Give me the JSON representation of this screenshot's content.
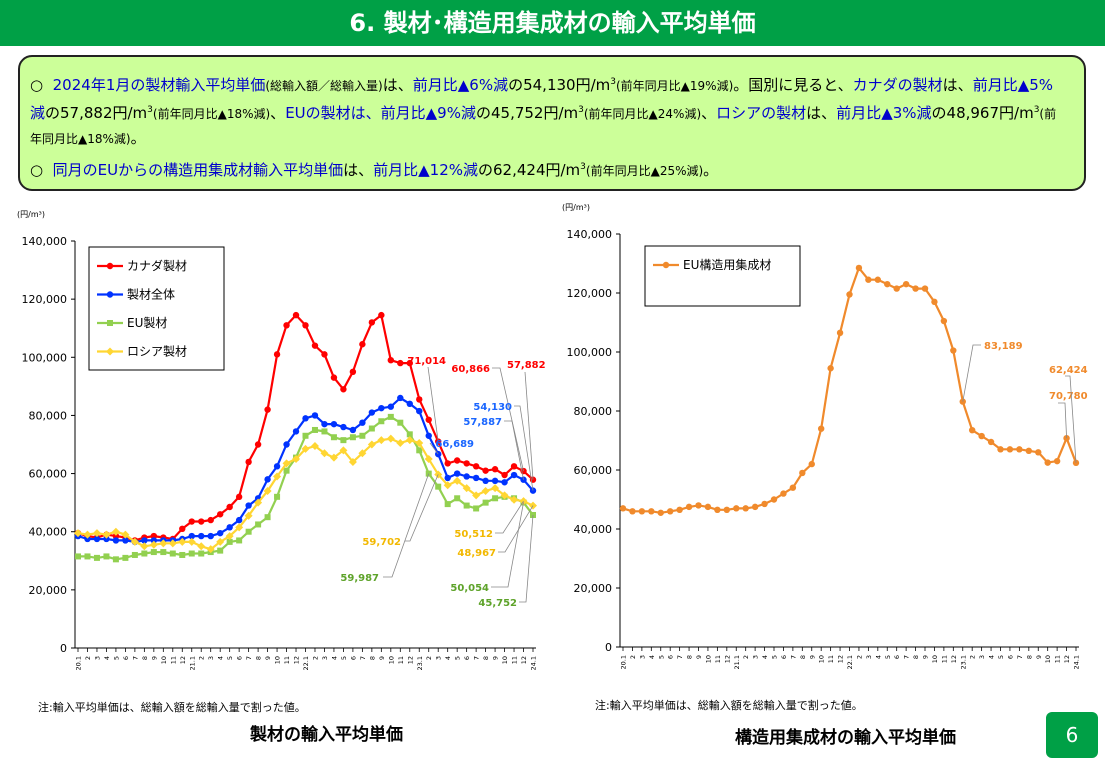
{
  "header": {
    "title": "6. 製材･構造用集成材の輸入平均単価"
  },
  "summary": {
    "bullet": "○",
    "para1": [
      {
        "t": "2024年1月の製材輸入平均単価",
        "c": "blue"
      },
      {
        "t": "(総輸入額／総輸入量)",
        "c": "small"
      },
      {
        "t": "は、",
        "c": ""
      },
      {
        "t": "前月比▲6%減",
        "c": "blue"
      },
      {
        "t": "の54,130円/m",
        "c": ""
      },
      {
        "t": "3",
        "c": "sup"
      },
      {
        "t": "(前年同月比▲19%減)",
        "c": "small"
      },
      {
        "t": "。国別に見ると、",
        "c": ""
      },
      {
        "t": "カナダの製材",
        "c": "blue"
      },
      {
        "t": "は、",
        "c": ""
      },
      {
        "t": "前月比▲5%減",
        "c": "blue"
      },
      {
        "t": "の57,882円/m",
        "c": ""
      },
      {
        "t": "3",
        "c": "sup"
      },
      {
        "t": "(前年同月比▲18%減)",
        "c": "small"
      },
      {
        "t": "、",
        "c": ""
      },
      {
        "t": "EUの製材は、前月比▲9%減",
        "c": "blue"
      },
      {
        "t": "の45,752円/m",
        "c": ""
      },
      {
        "t": "3",
        "c": "sup"
      },
      {
        "t": "(前年同月比▲24%減)",
        "c": "small"
      },
      {
        "t": "、",
        "c": ""
      },
      {
        "t": "ロシアの製材",
        "c": "blue"
      },
      {
        "t": "は、",
        "c": ""
      },
      {
        "t": "前月比▲3%減",
        "c": "blue"
      },
      {
        "t": "の48,967円/m",
        "c": ""
      },
      {
        "t": "3",
        "c": "sup"
      },
      {
        "t": "(前年同月比▲18%減)",
        "c": "small"
      },
      {
        "t": "。",
        "c": ""
      }
    ],
    "para2": [
      {
        "t": "同月のEUからの構造用集成材輸入平均単価",
        "c": "blue"
      },
      {
        "t": "は、",
        "c": ""
      },
      {
        "t": "前月比▲12%減",
        "c": "blue"
      },
      {
        "t": "の62,424円/m",
        "c": ""
      },
      {
        "t": "3",
        "c": "sup"
      },
      {
        "t": "(前年同月比▲25%減)",
        "c": "small"
      },
      {
        "t": "。",
        "c": ""
      }
    ]
  },
  "notes": {
    "left": "注:輸入平均単価は、総輸入額を総輸入量で割った値。",
    "right": "注:輸入平均単価は、総輸入額を総輸入量で割った値。"
  },
  "captions": {
    "left": "製材の輸入平均単価",
    "right": "構造用集成材の輸入平均単価"
  },
  "page_number": "6",
  "colors": {
    "canada": "#ff0000",
    "total": "#0033ff",
    "eu": "#92d050",
    "russia": "#ffd633",
    "glulam": "#f08a2c",
    "header": "#00a046",
    "panel": "#ccff99"
  },
  "chart_data": [
    {
      "type": "line",
      "title": "製材の輸入平均単価",
      "ylabel": "(円/m³)",
      "ylim": [
        0,
        140000
      ],
      "yticks": [
        "0",
        "20,000",
        "40,000",
        "60,000",
        "80,000",
        "100,000",
        "120,000",
        "140,000"
      ],
      "categories": [
        "20.1",
        "2",
        "3",
        "4",
        "5",
        "6",
        "7",
        "8",
        "9",
        "10",
        "11",
        "12",
        "21.1",
        "2",
        "3",
        "4",
        "5",
        "6",
        "7",
        "8",
        "9",
        "10",
        "11",
        "12",
        "22.1",
        "2",
        "3",
        "4",
        "5",
        "6",
        "7",
        "8",
        "9",
        "10",
        "11",
        "12",
        "23.1",
        "2",
        "3",
        "4",
        "5",
        "6",
        "7",
        "8",
        "9",
        "10",
        "11",
        "12",
        "24.1"
      ],
      "legend": [
        "カナダ製材",
        "製材全体",
        "EU製材",
        "ロシア製材"
      ],
      "legend_position": "top-left",
      "series": [
        {
          "name": "カナダ製材",
          "color": "#ff0000",
          "marker": "circle",
          "values": [
            39500,
            38500,
            38000,
            39000,
            38500,
            38000,
            37000,
            38000,
            38500,
            38000,
            37500,
            41000,
            43500,
            43500,
            44000,
            46000,
            48500,
            52000,
            64000,
            70000,
            82000,
            101000,
            111000,
            114500,
            111000,
            104000,
            101000,
            93000,
            89000,
            95000,
            104500,
            112000,
            114500,
            99000,
            98000,
            98000,
            85500,
            78500,
            71014,
            63500,
            64500,
            63500,
            62500,
            61000,
            61500,
            59500,
            62500,
            60866,
            57882
          ]
        },
        {
          "name": "製材全体",
          "color": "#0033ff",
          "marker": "circle",
          "values": [
            38500,
            37500,
            37500,
            37500,
            37000,
            37000,
            36500,
            37000,
            37000,
            37000,
            37000,
            37500,
            38500,
            38500,
            38500,
            39500,
            41500,
            44000,
            49000,
            51500,
            58000,
            62500,
            70000,
            74500,
            79000,
            80000,
            77000,
            77000,
            76000,
            75000,
            77500,
            81000,
            82500,
            83000,
            86000,
            84000,
            81500,
            73000,
            66689,
            58500,
            60000,
            59000,
            58500,
            57500,
            57500,
            57000,
            59500,
            57887,
            54130
          ]
        },
        {
          "name": "EU製材",
          "color": "#92d050",
          "marker": "square",
          "values": [
            31500,
            31500,
            31000,
            31500,
            30500,
            31000,
            32000,
            32500,
            33000,
            33000,
            32500,
            32000,
            32500,
            32500,
            33000,
            33500,
            36500,
            37000,
            40000,
            42500,
            45000,
            52000,
            61000,
            65500,
            73000,
            75000,
            74500,
            72500,
            71500,
            72500,
            73000,
            75500,
            78000,
            79500,
            77500,
            73500,
            68000,
            59987,
            55500,
            49500,
            51500,
            49000,
            48000,
            50000,
            51500,
            52000,
            51500,
            50054,
            45752
          ]
        },
        {
          "name": "ロシア製材",
          "color": "#ffd633",
          "marker": "diamond",
          "values": [
            39500,
            39000,
            39500,
            39000,
            40000,
            39000,
            36500,
            35000,
            35500,
            36000,
            36000,
            36500,
            36500,
            35000,
            34000,
            36500,
            38500,
            41500,
            45500,
            50000,
            54000,
            59000,
            63500,
            65000,
            68500,
            69500,
            67000,
            65500,
            68000,
            64000,
            67000,
            70000,
            71500,
            72000,
            70500,
            71500,
            70500,
            65000,
            59702,
            56000,
            57500,
            55000,
            52500,
            54000,
            55000,
            52500,
            51000,
            50512,
            48967
          ]
        }
      ],
      "annotations": [
        {
          "label": "71,014",
          "series": "カナダ製材",
          "index": 38
        },
        {
          "label": "60,866",
          "series": "カナダ製材",
          "index": 47
        },
        {
          "label": "57,882",
          "series": "カナダ製材",
          "index": 48
        },
        {
          "label": "54,130",
          "series": "製材全体",
          "index": 48
        },
        {
          "label": "57,887",
          "series": "製材全体",
          "index": 47
        },
        {
          "label": "66,689",
          "series": "製材全体",
          "index": 38
        },
        {
          "label": "59,702",
          "series": "ロシア製材",
          "index": 38
        },
        {
          "label": "50,512",
          "series": "ロシア製材",
          "index": 47
        },
        {
          "label": "48,967",
          "series": "ロシア製材",
          "index": 48
        },
        {
          "label": "59,987",
          "series": "EU製材",
          "index": 37
        },
        {
          "label": "50,054",
          "series": "EU製材",
          "index": 47
        },
        {
          "label": "45,752",
          "series": "EU製材",
          "index": 48
        }
      ]
    },
    {
      "type": "line",
      "title": "構造用集成材の輸入平均単価",
      "ylabel": "(円/m³)",
      "ylim": [
        0,
        140000
      ],
      "yticks": [
        "0",
        "20,000",
        "40,000",
        "60,000",
        "80,000",
        "100,000",
        "120,000",
        "140,000"
      ],
      "categories": [
        "20.1",
        "2",
        "3",
        "4",
        "5",
        "6",
        "7",
        "8",
        "9",
        "10",
        "11",
        "12",
        "21.1",
        "2",
        "3",
        "4",
        "5",
        "6",
        "7",
        "8",
        "9",
        "10",
        "11",
        "12",
        "22.1",
        "2",
        "3",
        "4",
        "5",
        "6",
        "7",
        "8",
        "9",
        "10",
        "11",
        "12",
        "23.1",
        "2",
        "3",
        "4",
        "5",
        "6",
        "7",
        "8",
        "9",
        "10",
        "11",
        "12",
        "24.1"
      ],
      "legend": [
        "EU構造用集成材"
      ],
      "legend_position": "top-left",
      "series": [
        {
          "name": "EU構造用集成材",
          "color": "#f08a2c",
          "marker": "circle",
          "values": [
            47000,
            46000,
            46000,
            46000,
            45500,
            46000,
            46500,
            47500,
            48000,
            47500,
            46500,
            46500,
            47000,
            47000,
            47500,
            48500,
            50000,
            52000,
            54000,
            59000,
            62000,
            74000,
            94500,
            106500,
            119500,
            128500,
            124500,
            124500,
            123000,
            121500,
            123000,
            121500,
            121500,
            117000,
            110500,
            100500,
            83189,
            73500,
            71500,
            69500,
            67000,
            67000,
            67000,
            66500,
            66000,
            62500,
            63000,
            70780,
            62424
          ]
        }
      ],
      "annotations": [
        {
          "label": "83,189",
          "series": "EU構造用集成材",
          "index": 36
        },
        {
          "label": "70,780",
          "series": "EU構造用集成材",
          "index": 47
        },
        {
          "label": "62,424",
          "series": "EU構造用集成材",
          "index": 48
        }
      ]
    }
  ]
}
